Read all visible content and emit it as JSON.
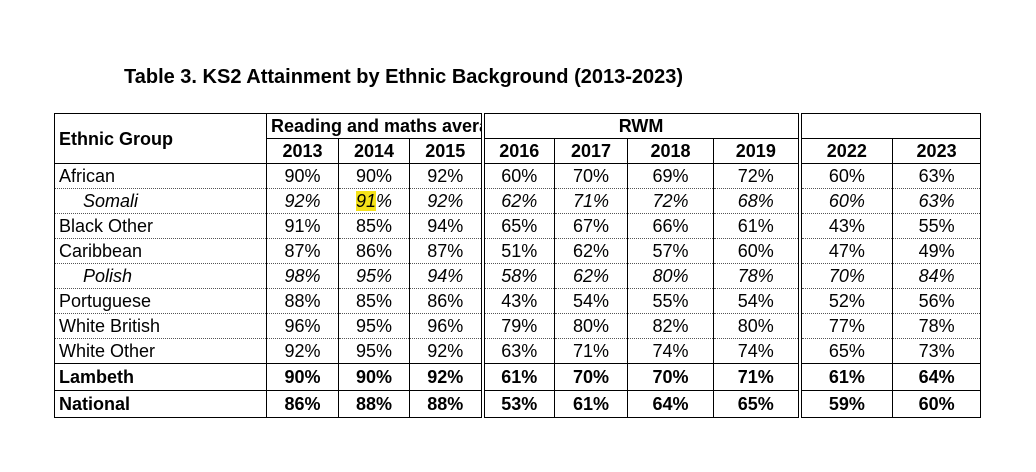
{
  "title": "Table 3.  KS2 Attainment by Ethnic Background (2013-2023)",
  "table": {
    "group_header": "Ethnic Group",
    "reading_maths_header": "Reading and maths average",
    "rwm_header": "RWM",
    "years": [
      "2013",
      "2014",
      "2015",
      "2016",
      "2017",
      "2018",
      "2019",
      "2022",
      "2023"
    ],
    "rows": [
      {
        "name": "African",
        "style": "normal",
        "values": [
          "90%",
          "90%",
          "92%",
          "60%",
          "70%",
          "69%",
          "72%",
          "60%",
          "63%"
        ]
      },
      {
        "name": "Somali",
        "style": "sub",
        "values": [
          "92%",
          "91%",
          "92%",
          "62%",
          "71%",
          "72%",
          "68%",
          "60%",
          "63%"
        ]
      },
      {
        "name": "Black Other",
        "style": "normal",
        "values": [
          "91%",
          "85%",
          "94%",
          "65%",
          "67%",
          "66%",
          "61%",
          "43%",
          "55%"
        ]
      },
      {
        "name": "Caribbean",
        "style": "normal",
        "values": [
          "87%",
          "86%",
          "87%",
          "51%",
          "62%",
          "57%",
          "60%",
          "47%",
          "49%"
        ]
      },
      {
        "name": "Polish",
        "style": "sub",
        "values": [
          "98%",
          "95%",
          "94%",
          "58%",
          "62%",
          "80%",
          "78%",
          "70%",
          "84%"
        ]
      },
      {
        "name": "Portuguese",
        "style": "normal",
        "values": [
          "88%",
          "85%",
          "86%",
          "43%",
          "54%",
          "55%",
          "54%",
          "52%",
          "56%"
        ]
      },
      {
        "name": "White British",
        "style": "normal",
        "values": [
          "96%",
          "95%",
          "96%",
          "79%",
          "80%",
          "82%",
          "80%",
          "77%",
          "78%"
        ]
      },
      {
        "name": "White Other",
        "style": "normal",
        "values": [
          "92%",
          "95%",
          "92%",
          "63%",
          "71%",
          "74%",
          "74%",
          "65%",
          "73%"
        ]
      },
      {
        "name": "Lambeth",
        "style": "total",
        "values": [
          "90%",
          "90%",
          "92%",
          "61%",
          "70%",
          "70%",
          "71%",
          "61%",
          "64%"
        ]
      },
      {
        "name": "National",
        "style": "total",
        "values": [
          "86%",
          "88%",
          "88%",
          "53%",
          "61%",
          "64%",
          "65%",
          "59%",
          "60%"
        ]
      }
    ],
    "highlight": {
      "row": 1,
      "col": 1,
      "text": "91",
      "color": "#f5e21a"
    }
  }
}
